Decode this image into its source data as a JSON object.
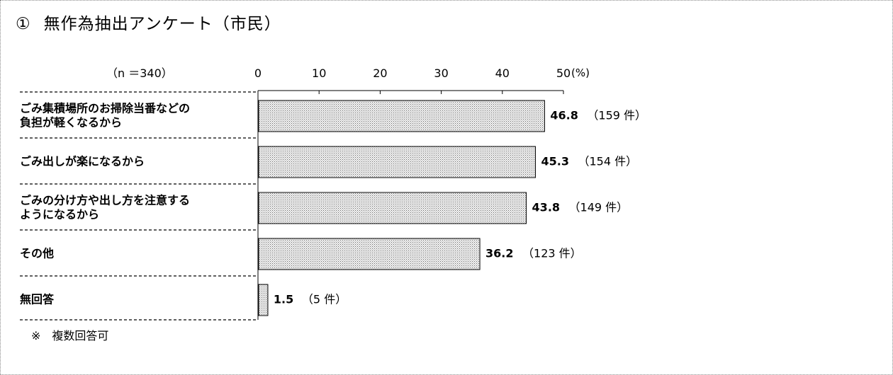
{
  "header": {
    "marker": "①",
    "title": "無作為抽出アンケート（市民）"
  },
  "sample_size": "（n ＝340）",
  "footnote": {
    "symbol": "※",
    "text": "複数回答可"
  },
  "chart_data": {
    "type": "bar",
    "orientation": "horizontal",
    "categories": [
      [
        "ごみ集積場所のお掃除当番などの",
        "負担が軽くなるから"
      ],
      [
        "ごみ出しが楽になるから"
      ],
      [
        "ごみの分け方や出し方を注意する",
        "ようになるから"
      ],
      [
        "その他"
      ],
      [
        "無回答"
      ]
    ],
    "values": [
      46.8,
      45.3,
      43.8,
      36.2,
      1.5
    ],
    "value_labels": [
      "46.8",
      "45.3",
      "43.8",
      "36.2",
      "1.5"
    ],
    "count_labels": [
      "（159 件）",
      "（154 件）",
      "（149 件）",
      "（123 件）",
      "（5 件）"
    ],
    "xlim": [
      0,
      50
    ],
    "x_ticks": [
      "0",
      "10",
      "20",
      "30",
      "40",
      "50"
    ],
    "x_unit": "(%)",
    "bar_fill": "dotted gray pattern",
    "grid": false,
    "legend": "none"
  }
}
